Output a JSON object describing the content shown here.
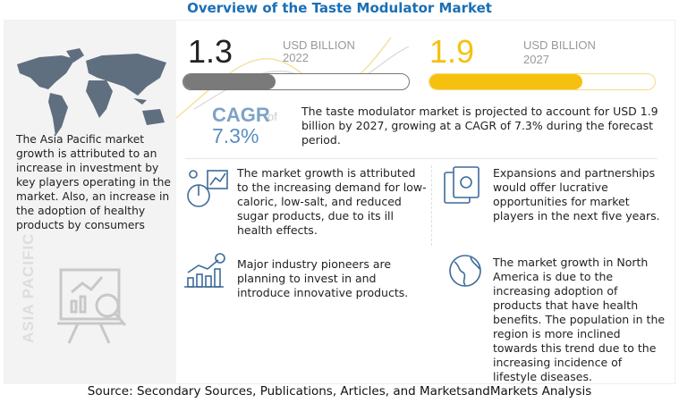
{
  "title": "Overview of the Taste Modulator Market",
  "market_2022": {
    "value": "1.3",
    "unit": "USD BILLION",
    "year": "2022",
    "bar_fill_fraction": 0.41,
    "color": "#7a7a7a"
  },
  "market_2027": {
    "value": "1.9",
    "unit": "USD BILLION",
    "year": "2027",
    "bar_fill_fraction": 0.68,
    "color": "#f5c10e"
  },
  "cagr": {
    "label": "CAGR",
    "of": "of",
    "value": "7.3%",
    "color": "#7da3c6"
  },
  "summary": "The taste modulator market is projected to account for USD 1.9 billion by 2027, growing at a CAGR of 7.3% during the forecast period.",
  "asia_pacific": {
    "label": "ASIA PACIFIC",
    "text": "The Asia Pacific market growth is attributed to an increase in investment by key players operating in the market. Also, an increase in the adoption of healthy products by consumers"
  },
  "points": [
    {
      "icon": "chart-analysis-icon",
      "text": "The market growth is attributed to the increasing demand for low-caloric, low-salt, and reduced sugar products, due to its ill health effects."
    },
    {
      "icon": "money-icon",
      "text": "Expansions and partnerships would offer lucrative opportunities for market players in the next five years."
    },
    {
      "icon": "growth-chart-icon",
      "text": "Major industry pioneers are planning to invest in and introduce innovative products."
    },
    {
      "icon": "globe-icon",
      "text": "The market growth in North America is due to the increasing adoption of products that have health benefits. The population in the region is more inclined towards this trend due to the increasing incidence of lifestyle diseases."
    }
  ],
  "source": "Source: Secondary Sources, Publications, Articles, and MarketsandMarkets Analysis"
}
